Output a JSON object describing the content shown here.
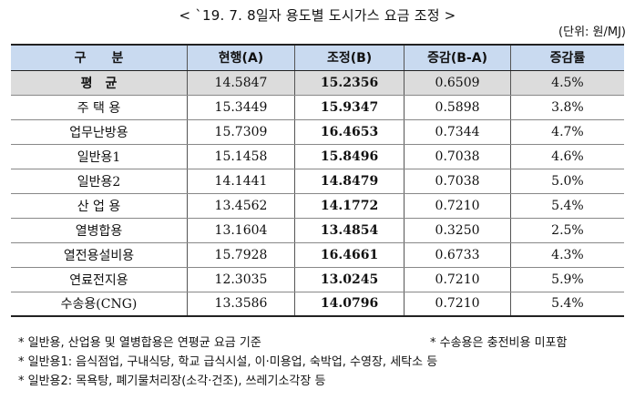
{
  "title": "< `19. 7. 8일자 용도별 도시가스 요금 조정 >",
  "unit": "(단위: 원/MJ)",
  "table": {
    "headers": [
      "구　　분",
      "현행(A)",
      "조정(B)",
      "증감(B-A)",
      "증감률"
    ],
    "rows": [
      [
        "평　균",
        "14.5847",
        "15.2356",
        "0.6509",
        "4.5%"
      ],
      [
        "주 택 용",
        "15.3449",
        "15.9347",
        "0.5898",
        "3.8%"
      ],
      [
        "업무난방용",
        "15.7309",
        "16.4653",
        "0.7344",
        "4.7%"
      ],
      [
        "일반용1",
        "15.1458",
        "15.8496",
        "0.7038",
        "4.6%"
      ],
      [
        "일반용2",
        "14.1441",
        "14.8479",
        "0.7038",
        "5.0%"
      ],
      [
        "산 업 용",
        "13.4562",
        "14.1772",
        "0.7210",
        "5.4%"
      ],
      [
        "열병합용",
        "13.1604",
        "13.4854",
        "0.3250",
        "2.5%"
      ],
      [
        "열전용설비용",
        "15.7928",
        "16.4661",
        "0.6733",
        "4.3%"
      ],
      [
        "연료전지용",
        "12.3035",
        "13.0245",
        "0.7210",
        "5.9%"
      ],
      [
        "수송용(CNG)",
        "13.3586",
        "14.0796",
        "0.7210",
        "5.4%"
      ]
    ]
  },
  "notes": {
    "line1_left": "* 일반용, 산업용 및 열병합용은 연평균 요금 기준",
    "line1_right": "* 수송용은 충전비용 미포함",
    "line2": "* 일반용1: 음식점업, 구내식당, 학교 급식시설, 이·미용업, 숙박업, 수영장, 세탁소 등",
    "line3": "* 일반용2: 목욕탕, 폐기물처리장(소각·건조), 쓰레기소각장 등"
  }
}
